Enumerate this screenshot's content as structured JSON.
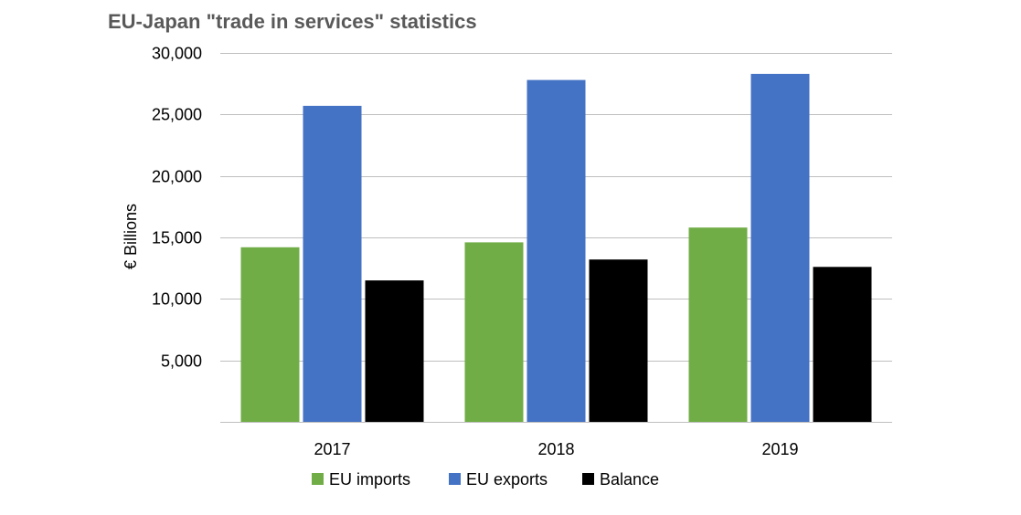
{
  "chart_data": {
    "type": "bar",
    "title": "EU-Japan \"trade in services\" statistics",
    "xlabel": "",
    "ylabel": "€ Billions",
    "categories": [
      "2017",
      "2018",
      "2019"
    ],
    "series": [
      {
        "name": "EU imports",
        "color": "#70AD47",
        "values": [
          14200,
          14600,
          15800
        ]
      },
      {
        "name": "EU exports",
        "color": "#4472C4",
        "values": [
          25700,
          27800,
          28300
        ]
      },
      {
        "name": "Balance",
        "color": "#000000",
        "values": [
          11500,
          13200,
          12600
        ]
      }
    ],
    "ylim": [
      0,
      30000
    ],
    "yticks": [
      5000,
      10000,
      15000,
      20000,
      25000,
      30000
    ],
    "ytick_labels": [
      "5,000",
      "10,000",
      "15,000",
      "20,000",
      "25,000",
      "30,000"
    ],
    "grid": true,
    "legend_position": "bottom"
  }
}
